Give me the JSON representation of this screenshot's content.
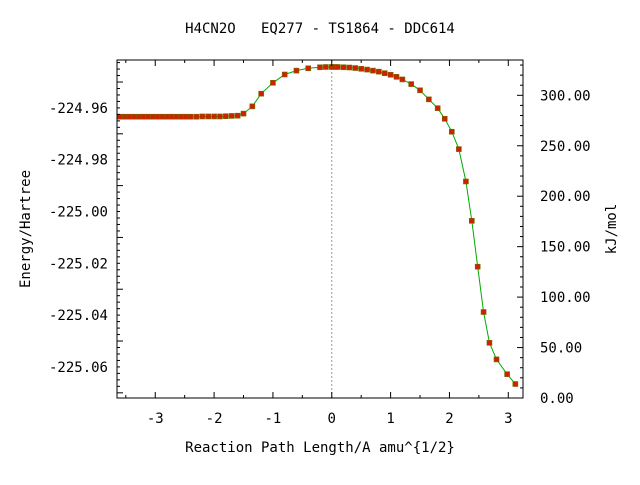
{
  "chart_data": {
    "type": "line",
    "title": "H4CN2O   EQ277 - TS1864 - DDC614",
    "xlabel": "Reaction Path Length/A amu^{1/2}",
    "ylabel": "Energy/Hartree",
    "y2label": "kJ/mol",
    "xlim": [
      -3.65,
      3.25
    ],
    "ylim": [
      -225.072,
      -224.9415
    ],
    "y2lim": [
      0,
      335
    ],
    "x_ticks": [
      "-3",
      "-2",
      "-1",
      "0",
      "1",
      "2",
      "3"
    ],
    "y_ticks": [
      "-224.96",
      "-224.98",
      "-225.00",
      "-225.02",
      "-225.04",
      "-225.06"
    ],
    "y2_ticks": [
      "0.00",
      "50.00",
      "100.00",
      "150.00",
      "200.00",
      "250.00",
      "300.00"
    ],
    "ts_marker_x": 0,
    "grid": false,
    "colors": {
      "line": "#00aa00",
      "marker": "#cc2200",
      "ts_line": "#999999"
    },
    "series": [
      {
        "x": [
          -3.6,
          -3.52,
          -3.44,
          -3.36,
          -3.28,
          -3.2,
          -3.12,
          -3.04,
          -2.96,
          -2.88,
          -2.8,
          -2.72,
          -2.64,
          -2.56,
          -2.48,
          -2.4,
          -2.3,
          -2.2,
          -2.1,
          -2.0,
          -1.9,
          -1.8,
          -1.7,
          -1.6,
          -1.5,
          -1.35,
          -1.2,
          -1.0,
          -0.8,
          -0.6,
          -0.4,
          -0.2,
          -0.1,
          0.0,
          0.05,
          0.1,
          0.2,
          0.3,
          0.4,
          0.5,
          0.6,
          0.7,
          0.8,
          0.9,
          1.0,
          1.1,
          1.2,
          1.35,
          1.5,
          1.65,
          1.8,
          1.92,
          2.04,
          2.16,
          2.28,
          2.38,
          2.48,
          2.58,
          2.68,
          2.8,
          2.98,
          3.12
        ],
        "y": [
          -224.9634,
          -224.9634,
          -224.9634,
          -224.9634,
          -224.9634,
          -224.9634,
          -224.9634,
          -224.9634,
          -224.9634,
          -224.9634,
          -224.9634,
          -224.9634,
          -224.9634,
          -224.9634,
          -224.9634,
          -224.9634,
          -224.9634,
          -224.9633,
          -224.9633,
          -224.9633,
          -224.9633,
          -224.9632,
          -224.9631,
          -224.963,
          -224.9622,
          -224.9594,
          -224.9545,
          -224.9503,
          -224.9471,
          -224.9456,
          -224.9447,
          -224.9443,
          -224.9442,
          -224.9442,
          -224.9442,
          -224.9442,
          -224.9443,
          -224.9444,
          -224.9446,
          -224.9449,
          -224.9452,
          -224.9456,
          -224.946,
          -224.9466,
          -224.9472,
          -224.948,
          -224.949,
          -224.9508,
          -224.9532,
          -224.9567,
          -224.9601,
          -224.9642,
          -224.9692,
          -224.9759,
          -224.9884,
          -225.0036,
          -225.0213,
          -225.0388,
          -225.0507,
          -225.0571,
          -225.0628,
          -225.0666
        ]
      }
    ]
  }
}
